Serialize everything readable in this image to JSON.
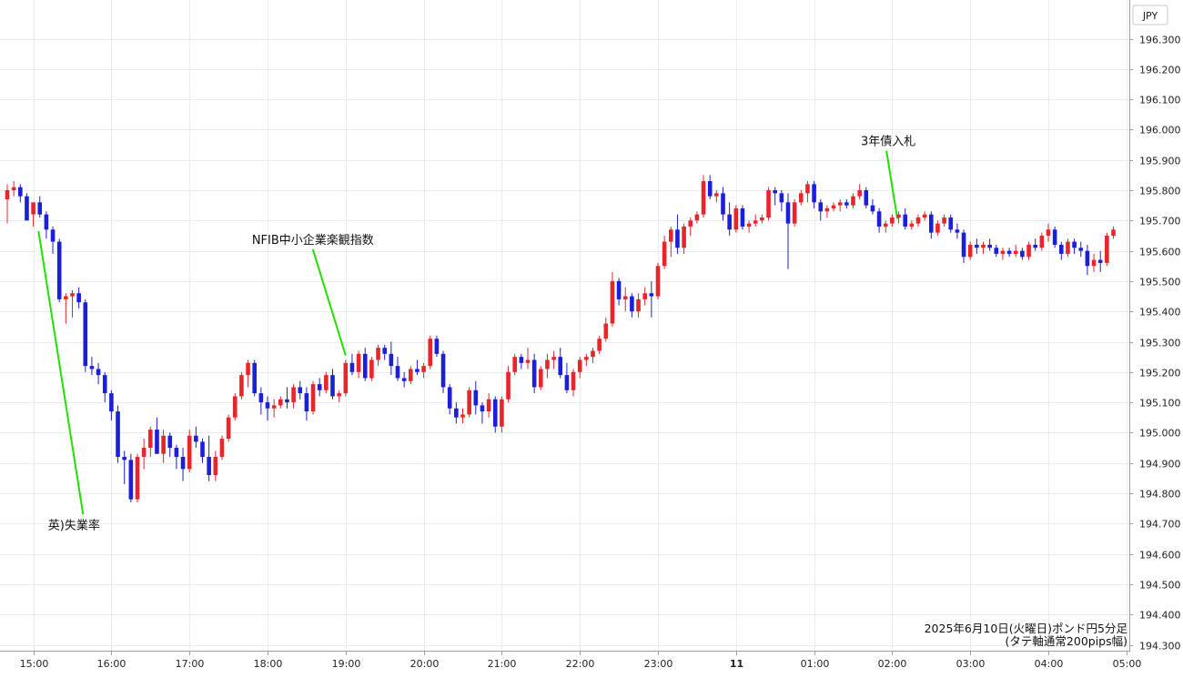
{
  "chart_data": {
    "type": "candlestick",
    "currency_label": "JPY",
    "caption_line1": "2025年6月10日(火曜日)ポンド円5分足",
    "caption_line2": "(タテ軸通常200pips幅)",
    "ylim": [
      194.3,
      196.35
    ],
    "y_ticks": [
      "196.300",
      "196.200",
      "196.100",
      "196.000",
      "195.900",
      "195.800",
      "195.700",
      "195.600",
      "195.500",
      "195.400",
      "195.300",
      "195.200",
      "195.100",
      "195.000",
      "194.900",
      "194.800",
      "194.700",
      "194.600",
      "194.500",
      "194.400",
      "194.300"
    ],
    "x_ticks": [
      {
        "label": "15:00",
        "t": 4
      },
      {
        "label": "16:00",
        "t": 16
      },
      {
        "label": "17:00",
        "t": 28
      },
      {
        "label": "18:00",
        "t": 40
      },
      {
        "label": "19:00",
        "t": 52
      },
      {
        "label": "20:00",
        "t": 64
      },
      {
        "label": "21:00",
        "t": 76
      },
      {
        "label": "22:00",
        "t": 88
      },
      {
        "label": "23:00",
        "t": 100
      },
      {
        "label": "11",
        "t": 112,
        "bold": true
      },
      {
        "label": "01:00",
        "t": 124
      },
      {
        "label": "02:00",
        "t": 136
      },
      {
        "label": "03:00",
        "t": 148
      },
      {
        "label": "04:00",
        "t": 160
      },
      {
        "label": "05:00",
        "t": 172
      }
    ],
    "annotations": [
      {
        "text": "英)失業率",
        "t": 4.8,
        "price": 195.665,
        "label_price": 194.7
      },
      {
        "text": "NFIB中小企業楽観指数",
        "t": 52.0,
        "price": 195.255,
        "label_price": 195.635
      },
      {
        "text": "3年債入札",
        "t": 136.8,
        "price": 195.705,
        "label_price": 195.96
      }
    ],
    "candles": [
      [
        195.77,
        195.82,
        195.69,
        195.8
      ],
      [
        195.8,
        195.83,
        195.78,
        195.81
      ],
      [
        195.81,
        195.82,
        195.76,
        195.78
      ],
      [
        195.78,
        195.79,
        195.72,
        195.7
      ],
      [
        195.72,
        195.74,
        195.68,
        195.76
      ],
      [
        195.76,
        195.78,
        195.71,
        195.72
      ],
      [
        195.72,
        195.73,
        195.64,
        195.67
      ],
      [
        195.67,
        195.68,
        195.59,
        195.63
      ],
      [
        195.63,
        195.64,
        195.43,
        195.44
      ],
      [
        195.44,
        195.46,
        195.36,
        195.45
      ],
      [
        195.45,
        195.47,
        195.38,
        195.46
      ],
      [
        195.46,
        195.48,
        195.41,
        195.43
      ],
      [
        195.43,
        195.44,
        195.2,
        195.22
      ],
      [
        195.22,
        195.25,
        195.19,
        195.21
      ],
      [
        195.21,
        195.23,
        195.16,
        195.19
      ],
      [
        195.19,
        195.2,
        195.1,
        195.13
      ],
      [
        195.13,
        195.14,
        195.04,
        195.07
      ],
      [
        195.07,
        195.09,
        194.9,
        194.92
      ],
      [
        194.92,
        194.94,
        194.83,
        194.91
      ],
      [
        194.91,
        194.93,
        194.77,
        194.78
      ],
      [
        194.78,
        194.93,
        194.77,
        194.92
      ],
      [
        194.92,
        194.98,
        194.88,
        194.95
      ],
      [
        194.95,
        195.02,
        194.92,
        195.01
      ],
      [
        195.01,
        195.05,
        194.93,
        194.93
      ],
      [
        194.93,
        195.01,
        194.9,
        194.99
      ],
      [
        194.99,
        195.0,
        194.92,
        194.95
      ],
      [
        194.95,
        194.96,
        194.88,
        194.92
      ],
      [
        194.92,
        194.95,
        194.84,
        194.88
      ],
      [
        194.88,
        195.01,
        194.87,
        194.99
      ],
      [
        194.99,
        195.02,
        194.95,
        194.97
      ],
      [
        194.97,
        194.98,
        194.9,
        194.92
      ],
      [
        194.92,
        194.99,
        194.84,
        194.86
      ],
      [
        194.86,
        194.94,
        194.84,
        194.92
      ],
      [
        194.92,
        194.99,
        194.91,
        194.98
      ],
      [
        194.98,
        195.06,
        194.97,
        195.05
      ],
      [
        195.05,
        195.13,
        195.04,
        195.12
      ],
      [
        195.12,
        195.2,
        195.11,
        195.19
      ],
      [
        195.19,
        195.24,
        195.15,
        195.23
      ],
      [
        195.23,
        195.24,
        195.12,
        195.13
      ],
      [
        195.13,
        195.15,
        195.06,
        195.1
      ],
      [
        195.1,
        195.12,
        195.04,
        195.08
      ],
      [
        195.08,
        195.11,
        195.05,
        195.09
      ],
      [
        195.09,
        195.12,
        195.08,
        195.11
      ],
      [
        195.11,
        195.15,
        195.08,
        195.1
      ],
      [
        195.1,
        195.16,
        195.08,
        195.15
      ],
      [
        195.15,
        195.17,
        195.11,
        195.13
      ],
      [
        195.13,
        195.15,
        195.04,
        195.07
      ],
      [
        195.07,
        195.17,
        195.06,
        195.16
      ],
      [
        195.16,
        195.18,
        195.12,
        195.14
      ],
      [
        195.14,
        195.2,
        195.13,
        195.19
      ],
      [
        195.19,
        195.21,
        195.11,
        195.12
      ],
      [
        195.12,
        195.14,
        195.1,
        195.13
      ],
      [
        195.13,
        195.24,
        195.12,
        195.23
      ],
      [
        195.23,
        195.26,
        195.19,
        195.2
      ],
      [
        195.2,
        195.27,
        195.18,
        195.26
      ],
      [
        195.26,
        195.28,
        195.17,
        195.18
      ],
      [
        195.18,
        195.25,
        195.17,
        195.24
      ],
      [
        195.24,
        195.29,
        195.22,
        195.28
      ],
      [
        195.28,
        195.29,
        195.24,
        195.26
      ],
      [
        195.26,
        195.3,
        195.19,
        195.22
      ],
      [
        195.22,
        195.25,
        195.17,
        195.18
      ],
      [
        195.18,
        195.2,
        195.15,
        195.17
      ],
      [
        195.17,
        195.22,
        195.16,
        195.21
      ],
      [
        195.21,
        195.24,
        195.19,
        195.2
      ],
      [
        195.2,
        195.23,
        195.18,
        195.22
      ],
      [
        195.22,
        195.32,
        195.21,
        195.31
      ],
      [
        195.31,
        195.32,
        195.25,
        195.26
      ],
      [
        195.26,
        195.27,
        195.13,
        195.15
      ],
      [
        195.15,
        195.16,
        195.06,
        195.08
      ],
      [
        195.08,
        195.1,
        195.03,
        195.05
      ],
      [
        195.05,
        195.08,
        195.03,
        195.06
      ],
      [
        195.06,
        195.15,
        195.05,
        195.14
      ],
      [
        195.14,
        195.17,
        195.06,
        195.09
      ],
      [
        195.09,
        195.1,
        195.03,
        195.07
      ],
      [
        195.07,
        195.13,
        195.05,
        195.11
      ],
      [
        195.11,
        195.12,
        195.0,
        195.02
      ],
      [
        195.02,
        195.12,
        195.0,
        195.11
      ],
      [
        195.11,
        195.22,
        195.1,
        195.2
      ],
      [
        195.2,
        195.26,
        195.19,
        195.25
      ],
      [
        195.25,
        195.26,
        195.21,
        195.23
      ],
      [
        195.23,
        195.28,
        195.21,
        195.24
      ],
      [
        195.24,
        195.26,
        195.13,
        195.15
      ],
      [
        195.15,
        195.22,
        195.14,
        195.21
      ],
      [
        195.21,
        195.26,
        195.18,
        195.24
      ],
      [
        195.24,
        195.27,
        195.21,
        195.25
      ],
      [
        195.25,
        195.28,
        195.18,
        195.19
      ],
      [
        195.19,
        195.23,
        195.13,
        195.14
      ],
      [
        195.14,
        195.21,
        195.12,
        195.2
      ],
      [
        195.2,
        195.25,
        195.18,
        195.24
      ],
      [
        195.24,
        195.26,
        195.22,
        195.25
      ],
      [
        195.25,
        195.28,
        195.23,
        195.27
      ],
      [
        195.27,
        195.32,
        195.26,
        195.31
      ],
      [
        195.31,
        195.38,
        195.3,
        195.36
      ],
      [
        195.36,
        195.53,
        195.35,
        195.5
      ],
      [
        195.5,
        195.51,
        195.42,
        195.44
      ],
      [
        195.44,
        195.48,
        195.4,
        195.45
      ],
      [
        195.45,
        195.46,
        195.38,
        195.4
      ],
      [
        195.4,
        195.46,
        195.38,
        195.44
      ],
      [
        195.44,
        195.48,
        195.42,
        195.46
      ],
      [
        195.46,
        195.5,
        195.38,
        195.45
      ],
      [
        195.45,
        195.56,
        195.44,
        195.55
      ],
      [
        195.55,
        195.65,
        195.54,
        195.63
      ],
      [
        195.63,
        195.68,
        195.58,
        195.67
      ],
      [
        195.67,
        195.72,
        195.59,
        195.61
      ],
      [
        195.61,
        195.69,
        195.59,
        195.68
      ],
      [
        195.68,
        195.71,
        195.65,
        195.7
      ],
      [
        195.7,
        195.73,
        195.69,
        195.72
      ],
      [
        195.72,
        195.85,
        195.71,
        195.83
      ],
      [
        195.83,
        195.85,
        195.77,
        195.78
      ],
      [
        195.78,
        195.8,
        195.76,
        195.79
      ],
      [
        195.79,
        195.81,
        195.7,
        195.72
      ],
      [
        195.72,
        195.76,
        195.65,
        195.67
      ],
      [
        195.67,
        195.75,
        195.66,
        195.74
      ],
      [
        195.74,
        195.75,
        195.67,
        195.68
      ],
      [
        195.68,
        195.7,
        195.66,
        195.69
      ],
      [
        195.69,
        195.72,
        195.68,
        195.7
      ],
      [
        195.7,
        195.72,
        195.69,
        195.71
      ],
      [
        195.71,
        195.81,
        195.7,
        195.8
      ],
      [
        195.8,
        195.81,
        195.75,
        195.79
      ],
      [
        195.79,
        195.8,
        195.73,
        195.76
      ],
      [
        195.76,
        195.79,
        195.54,
        195.69
      ],
      [
        195.69,
        195.77,
        195.68,
        195.76
      ],
      [
        195.76,
        195.8,
        195.75,
        195.79
      ],
      [
        195.79,
        195.83,
        195.76,
        195.82
      ],
      [
        195.82,
        195.83,
        195.74,
        195.76
      ],
      [
        195.76,
        195.77,
        195.7,
        195.73
      ],
      [
        195.73,
        195.75,
        195.71,
        195.74
      ],
      [
        195.74,
        195.76,
        195.73,
        195.75
      ],
      [
        195.75,
        195.77,
        195.73,
        195.76
      ],
      [
        195.76,
        195.77,
        195.74,
        195.75
      ],
      [
        195.75,
        195.79,
        195.74,
        195.78
      ],
      [
        195.78,
        195.82,
        195.77,
        195.8
      ],
      [
        195.8,
        195.81,
        195.74,
        195.75
      ],
      [
        195.75,
        195.77,
        195.72,
        195.73
      ],
      [
        195.73,
        195.74,
        195.66,
        195.68
      ],
      [
        195.68,
        195.7,
        195.66,
        195.69
      ],
      [
        195.69,
        195.72,
        195.68,
        195.71
      ],
      [
        195.71,
        195.73,
        195.69,
        195.72
      ],
      [
        195.72,
        195.74,
        195.67,
        195.68
      ],
      [
        195.68,
        195.7,
        195.67,
        195.69
      ],
      [
        195.69,
        195.72,
        195.68,
        195.71
      ],
      [
        195.71,
        195.73,
        195.7,
        195.72
      ],
      [
        195.72,
        195.73,
        195.64,
        195.66
      ],
      [
        195.66,
        195.7,
        195.65,
        195.69
      ],
      [
        195.69,
        195.72,
        195.68,
        195.71
      ],
      [
        195.71,
        195.72,
        195.66,
        195.67
      ],
      [
        195.67,
        195.69,
        195.64,
        195.66
      ],
      [
        195.66,
        195.67,
        195.56,
        195.58
      ],
      [
        195.58,
        195.63,
        195.57,
        195.62
      ],
      [
        195.62,
        195.64,
        195.59,
        195.61
      ],
      [
        195.61,
        195.63,
        195.59,
        195.62
      ],
      [
        195.62,
        195.64,
        195.6,
        195.61
      ],
      [
        195.61,
        195.62,
        195.58,
        195.59
      ],
      [
        195.59,
        195.61,
        195.57,
        195.6
      ],
      [
        195.6,
        195.61,
        195.58,
        195.59
      ],
      [
        195.59,
        195.62,
        195.58,
        195.6
      ],
      [
        195.6,
        195.61,
        195.57,
        195.58
      ],
      [
        195.58,
        195.63,
        195.57,
        195.62
      ],
      [
        195.62,
        195.64,
        195.6,
        195.61
      ],
      [
        195.61,
        195.66,
        195.6,
        195.65
      ],
      [
        195.65,
        195.69,
        195.63,
        195.67
      ],
      [
        195.67,
        195.68,
        195.61,
        195.62
      ],
      [
        195.62,
        195.63,
        195.57,
        195.59
      ],
      [
        195.59,
        195.64,
        195.58,
        195.63
      ],
      [
        195.63,
        195.64,
        195.59,
        195.61
      ],
      [
        195.61,
        195.63,
        195.58,
        195.6
      ],
      [
        195.6,
        195.62,
        195.52,
        195.55
      ],
      [
        195.55,
        195.59,
        195.53,
        195.57
      ],
      [
        195.57,
        195.6,
        195.53,
        195.56
      ],
      [
        195.56,
        195.66,
        195.55,
        195.65
      ],
      [
        195.65,
        195.68,
        195.64,
        195.67
      ]
    ]
  }
}
